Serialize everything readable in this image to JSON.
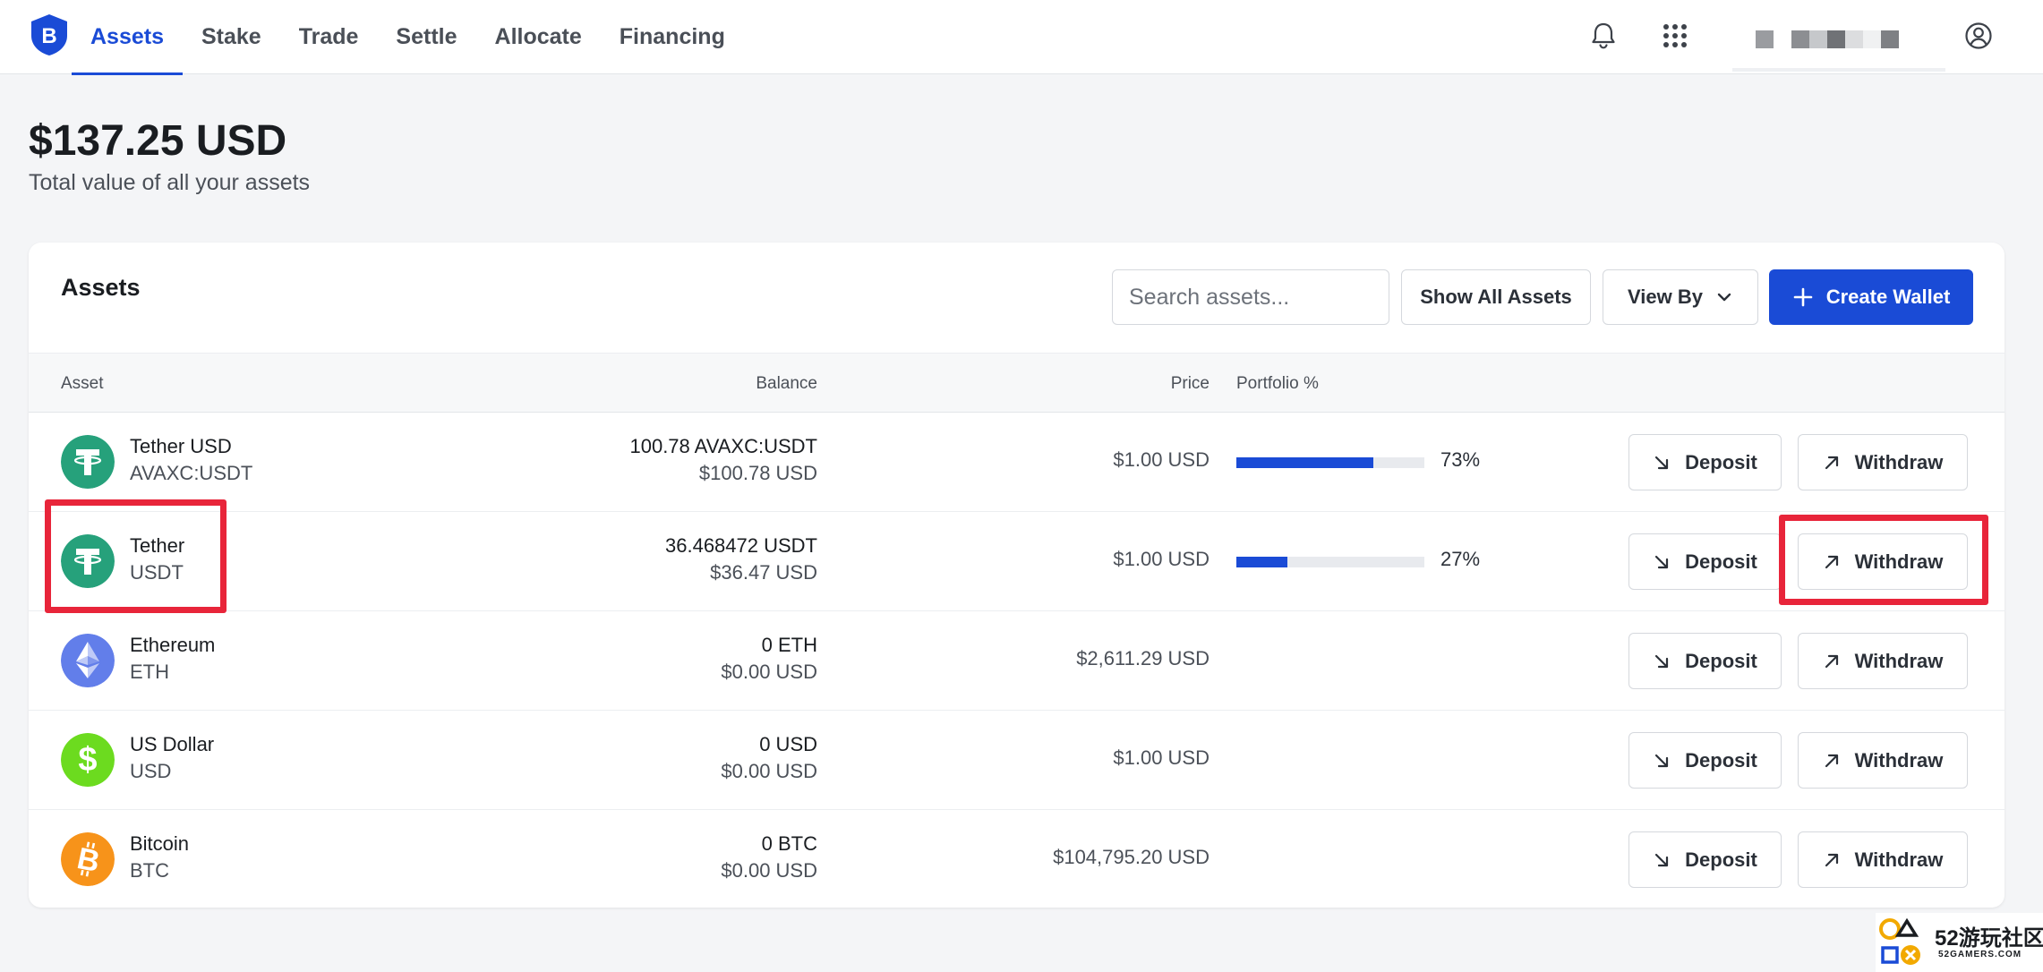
{
  "nav": {
    "items": [
      {
        "label": "Assets",
        "active": true
      },
      {
        "label": "Stake",
        "active": false
      },
      {
        "label": "Trade",
        "active": false
      },
      {
        "label": "Settle",
        "active": false
      },
      {
        "label": "Allocate",
        "active": false
      },
      {
        "label": "Financing",
        "active": false
      }
    ],
    "icons": [
      "bell-icon",
      "apps-grid-icon",
      "user-account-icon"
    ]
  },
  "summary": {
    "total": "$137.25 USD",
    "subtitle": "Total value of all your assets"
  },
  "card": {
    "title": "Assets",
    "search_placeholder": "Search assets...",
    "show_all_label": "Show All Assets",
    "view_by_label": "View By",
    "create_wallet_label": "Create Wallet"
  },
  "table": {
    "headers": {
      "asset": "Asset",
      "balance": "Balance",
      "price": "Price",
      "portfolio": "Portfolio %"
    },
    "deposit_label": "Deposit",
    "withdraw_label": "Withdraw",
    "rows": [
      {
        "name": "Tether USD",
        "symbol": "AVAXC:USDT",
        "balance": "100.78 AVAXC:USDT",
        "balance_usd": "$100.78 USD",
        "price": "$1.00 USD",
        "portfolio": "73%",
        "portfolio_value": 0.73,
        "icon": "tether-icon"
      },
      {
        "name": "Tether",
        "symbol": "USDT",
        "balance": "36.468472 USDT",
        "balance_usd": "$36.47 USD",
        "price": "$1.00 USD",
        "portfolio": "27%",
        "portfolio_value": 0.27,
        "icon": "tether-icon"
      },
      {
        "name": "Ethereum",
        "symbol": "ETH",
        "balance": "0 ETH",
        "balance_usd": "$0.00 USD",
        "price": "$2,611.29 USD",
        "portfolio": "",
        "icon": "ethereum-icon"
      },
      {
        "name": "US Dollar",
        "symbol": "USD",
        "balance": "0 USD",
        "balance_usd": "$0.00 USD",
        "price": "$1.00 USD",
        "portfolio": "",
        "icon": "dollar-icon"
      },
      {
        "name": "Bitcoin",
        "symbol": "BTC",
        "balance": "0 BTC",
        "balance_usd": "$0.00 USD",
        "price": "$104,795.20 USD",
        "portfolio": "",
        "icon": "bitcoin-icon"
      }
    ]
  },
  "colors": {
    "accent": "#1a4bd6",
    "highlight": "#e8253a",
    "tether": "#26a17b",
    "ethereum": "#627eea",
    "usd": "#6cdb1f",
    "bitcoin": "#f7931a"
  },
  "watermark": {
    "text": "52游玩社区",
    "sub": "52GAMERS.COM"
  }
}
